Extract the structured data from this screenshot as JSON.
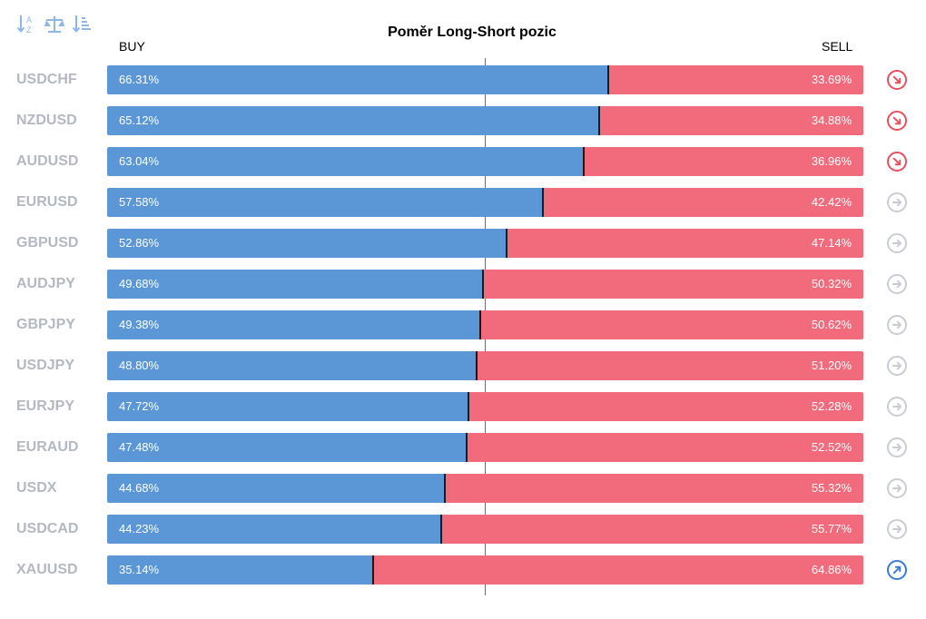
{
  "toolbar": {
    "buttons": [
      {
        "name": "sort-alpha-icon",
        "icon": "sort-alpha"
      },
      {
        "name": "balance-scale-icon",
        "icon": "balance-scale"
      },
      {
        "name": "sort-list-icon",
        "icon": "sort-list"
      }
    ]
  },
  "colors": {
    "buy": "#5b97d6",
    "sell": "#f16b7c",
    "trend_down": "#e8505e",
    "trend_neutral": "#c9ccd3",
    "trend_up": "#3a7bd5",
    "symbol_text": "#b4b8c0"
  },
  "chart_data": {
    "type": "bar",
    "title": "Poměr Long-Short pozic",
    "buy_label": "BUY",
    "sell_label": "SELL",
    "categories": [
      "USDCHF",
      "NZDUSD",
      "AUDUSD",
      "EURUSD",
      "GBPUSD",
      "AUDJPY",
      "GBPJPY",
      "USDJPY",
      "EURJPY",
      "EURAUD",
      "USDX",
      "USDCAD",
      "XAUUSD"
    ],
    "series": [
      {
        "name": "BUY",
        "values": [
          66.31,
          65.12,
          63.04,
          57.58,
          52.86,
          49.68,
          49.38,
          48.8,
          47.72,
          47.48,
          44.68,
          44.23,
          35.14
        ]
      },
      {
        "name": "SELL",
        "values": [
          33.69,
          34.88,
          36.96,
          42.42,
          47.14,
          50.32,
          50.62,
          51.2,
          52.28,
          52.52,
          55.32,
          55.77,
          64.86
        ]
      }
    ],
    "buy_labels": [
      "66.31%",
      "65.12%",
      "63.04%",
      "57.58%",
      "52.86%",
      "49.68%",
      "49.38%",
      "48.80%",
      "47.72%",
      "47.48%",
      "44.68%",
      "44.23%",
      "35.14%"
    ],
    "sell_labels": [
      "33.69%",
      "34.88%",
      "36.96%",
      "42.42%",
      "47.14%",
      "50.32%",
      "50.62%",
      "51.20%",
      "52.28%",
      "52.52%",
      "55.32%",
      "55.77%",
      "64.86%"
    ],
    "trend": [
      "down",
      "down",
      "down",
      "neutral",
      "neutral",
      "neutral",
      "neutral",
      "neutral",
      "neutral",
      "neutral",
      "neutral",
      "neutral",
      "up"
    ],
    "xlim": [
      0,
      100
    ],
    "stacked": true,
    "orientation": "horizontal",
    "reference_line": 50
  }
}
